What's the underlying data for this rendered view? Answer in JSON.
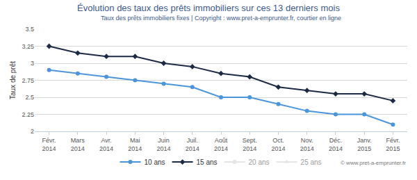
{
  "chart_data": {
    "type": "line",
    "title": "Évolution des taux des prêts immobiliers sur ces 13 derniers mois",
    "subtitle": "Taux des prêts immobiliers fixes | Copyright : www.pret-a-emprunter.fr, courtier en ligne",
    "y_label": "Taux de prêt",
    "annotations": [
      "© www.pret-a-emprunter.fr"
    ],
    "categories": [
      "Févr. 2014",
      "Mars 2014",
      "Avr. 2014",
      "Mai 2014",
      "Juin 2014",
      "Juil. 2014",
      "Août 2014",
      "Sept. 2014",
      "Oct. 2014",
      "Nov. 2014",
      "Déc. 2014",
      "Janv. 2015",
      "Févr. 2015"
    ],
    "series": [
      {
        "name": "10 ans",
        "color": "#4b95dd",
        "marker": "circle",
        "line_style": "solid",
        "values": [
          2.9,
          2.85,
          2.8,
          2.75,
          2.7,
          2.65,
          2.5,
          2.5,
          2.4,
          2.3,
          2.25,
          2.25,
          2.1
        ]
      },
      {
        "name": "15 ans",
        "color": "#1c2a44",
        "marker": "diamond",
        "line_style": "solid",
        "values": [
          3.25,
          3.15,
          3.1,
          3.1,
          3.0,
          2.95,
          2.85,
          2.8,
          2.65,
          2.6,
          2.55,
          2.55,
          2.45
        ]
      },
      {
        "name": "20 ans",
        "color": "#cccccc",
        "marker": "circle",
        "line_style": "solid",
        "values": [
          null,
          null,
          null,
          null,
          null,
          null,
          null,
          null,
          null,
          null,
          null,
          null,
          null
        ]
      },
      {
        "name": "25 ans",
        "color": "#cccccc",
        "marker": "triangle-up",
        "line_style": "solid",
        "values": [
          null,
          null,
          null,
          null,
          null,
          null,
          null,
          null,
          null,
          null,
          null,
          null,
          null
        ]
      }
    ],
    "ylim": [
      2,
      3.5
    ],
    "yticks": [
      2,
      2.25,
      2.5,
      2.75,
      3,
      3.25,
      3.5
    ],
    "grid": true,
    "legend": "bottom"
  }
}
